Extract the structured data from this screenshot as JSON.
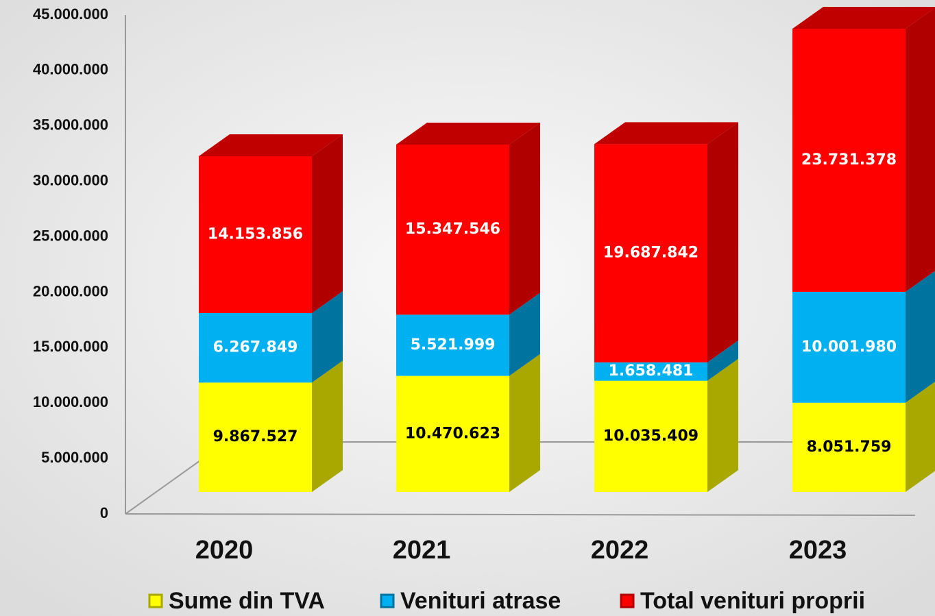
{
  "chart_data": {
    "type": "bar3d-stacked",
    "categories": [
      "2020",
      "2021",
      "2022",
      "2023"
    ],
    "series": [
      {
        "name": "Sume din TVA",
        "color": "#ffff00",
        "values": [
          9867527,
          10470623,
          10035409,
          8051759
        ],
        "value_labels": [
          "9.867.527",
          "10.470.623",
          "10.035.409",
          "8.051.759"
        ]
      },
      {
        "name": "Venituri atrase",
        "color": "#00b0f0",
        "values": [
          6267849,
          5521999,
          1658481,
          10001980
        ],
        "value_labels": [
          "6.267.849",
          "5.521.999",
          "1.658.481",
          "10.001.980"
        ]
      },
      {
        "name": "Total venituri proprii",
        "color": "#ff0000",
        "values": [
          14153856,
          15347546,
          19687842,
          23731378
        ],
        "value_labels": [
          "14.153.856",
          "15.347.546",
          "19.687.842",
          "23.731.378"
        ]
      }
    ],
    "ylim": [
      0,
      45000000
    ],
    "yticks": [
      0,
      {
        "value": 5000000,
        "label": "5.000.000"
      },
      {
        "value": 10000000,
        "label": "10.000.000"
      },
      {
        "value": 15000000,
        "label": "15.000.000"
      },
      {
        "value": 20000000,
        "label": "20.000.000"
      },
      {
        "value": 25000000,
        "label": "25.000.000"
      },
      {
        "value": 30000000,
        "label": "30.000.000"
      },
      {
        "value": 35000000,
        "label": "35.000.000"
      },
      {
        "value": 40000000,
        "label": "40.000.000"
      },
      {
        "value": 45000000,
        "label": "45.000.000"
      }
    ],
    "legend": "bottom"
  }
}
